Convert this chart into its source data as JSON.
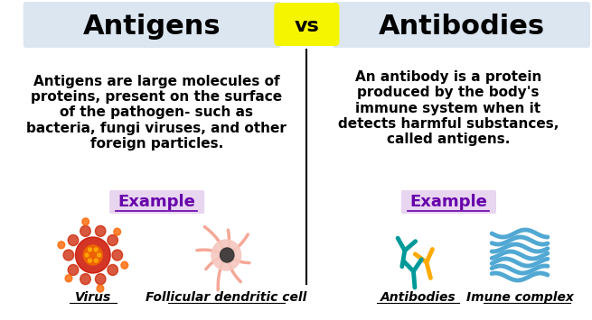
{
  "bg_color": "#ffffff",
  "left_header_bg": "#dce6f1",
  "right_header_bg": "#dce6f1",
  "vs_bg": "#f5f500",
  "vs_text": "vs",
  "left_title": "Antigens",
  "right_title": "Antibodies",
  "left_body": "Antigens are large molecules of\nproteins, present on the surface\nof the pathogen- such as\nbacteria, fungi viruses, and other\nforeign particles.",
  "right_body": "An antibody is a protein\nproduced by the body's\nimmune system when it\ndetects harmful substances,\ncalled antigens.",
  "example_label": "Example",
  "example_bg": "#e8d5f0",
  "left_img1_label": "Virus",
  "left_img2_label": "Follicular dendritic cell",
  "right_img1_label": "Antibodies",
  "right_img2_label": "Imune complex",
  "divider_color": "#000000",
  "header_fontsize": 22,
  "body_fontsize": 11,
  "example_fontsize": 13,
  "label_fontsize": 10,
  "title_color": "#000000",
  "body_color": "#000000"
}
